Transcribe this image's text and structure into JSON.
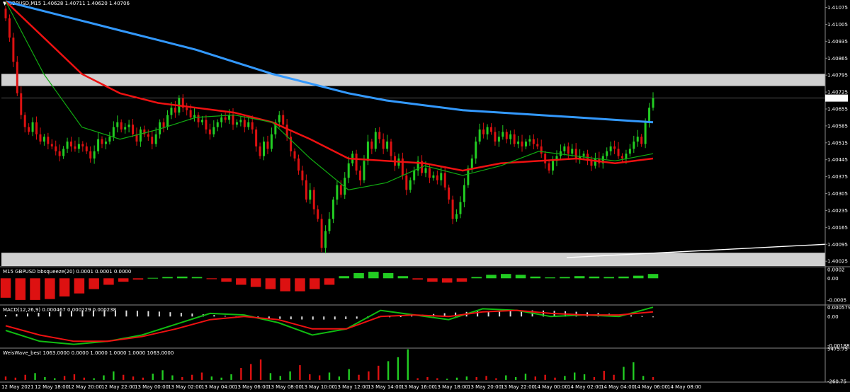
{
  "header": {
    "symbol_line": "GBPUSD,M15",
    "ohlc": "1.40628 1.40711 1.40620 1.40706"
  },
  "panels": {
    "bbsqueeze_title": "M15 GBPUSD bbsqueeze(20) 0.0001 0.0001 0.0000",
    "macd_title": "MACD(12,26,9) 0.000467 0.000229 0.000238",
    "weis_title": "WeisWave_best 1063.0000 0.0000 1.0000 1.0000 1.0000 1063.0000"
  },
  "colors": {
    "background": "#000000",
    "bull": "#22cc22",
    "bear": "#dd1111",
    "ma_blue": "#3399ff",
    "ma_red": "#ee1111",
    "ma_green": "#11aa11",
    "ma_yellow": "#d8d860",
    "zone": "#d0d0d0",
    "grid_line": "#ffffff"
  },
  "chart_data": [
    {
      "type": "candlestick",
      "panel": "price",
      "symbol": "GBPUSD",
      "timeframe": "M15",
      "ylim": [
        1.40005,
        1.411
      ],
      "y_ticks": [
        "1.41075",
        "1.41005",
        "1.40935",
        "1.40865",
        "1.40795",
        "1.40725",
        "1.40655",
        "1.40585",
        "1.40515",
        "1.40445",
        "1.40375",
        "1.40305",
        "1.40235",
        "1.40165",
        "1.40095",
        "1.40025"
      ],
      "current_price_label": "1.40706",
      "x_labels": [
        "12 May 2021",
        "12 May 18:00",
        "12 May 20:00",
        "12 May 22:00",
        "13 May 00:00",
        "13 May 02:00",
        "13 May 04:00",
        "13 May 06:00",
        "13 May 08:00",
        "13 May 10:00",
        "13 May 12:00",
        "13 May 14:00",
        "13 May 16:00",
        "13 May 18:00",
        "13 May 20:00",
        "13 May 22:00",
        "14 May 00:00",
        "14 May 02:00",
        "14 May 04:00",
        "14 May 06:00",
        "14 May 08:00"
      ],
      "zones": [
        [
          1.4075,
          1.408
        ],
        [
          1.40005,
          1.4006
        ]
      ],
      "closes": [
        1.4103,
        1.4095,
        1.4085,
        1.4072,
        1.4063,
        1.4058,
        1.4056,
        1.406,
        1.4055,
        1.4052,
        1.4054,
        1.4051,
        1.405,
        1.4048,
        1.4046,
        1.4049,
        1.4052,
        1.405,
        1.4049,
        1.4051,
        1.405,
        1.4048,
        1.4045,
        1.4048,
        1.4053,
        1.4051,
        1.4052,
        1.4054,
        1.4058,
        1.406,
        1.4057,
        1.4058,
        1.4059,
        1.4055,
        1.4052,
        1.4057,
        1.4055,
        1.4054,
        1.4051,
        1.4055,
        1.406,
        1.4058,
        1.4063,
        1.4066,
        1.4064,
        1.407,
        1.4066,
        1.4065,
        1.4062,
        1.4063,
        1.406,
        1.4061,
        1.4057,
        1.4055,
        1.4058,
        1.406,
        1.4062,
        1.4061,
        1.4063,
        1.4059,
        1.406,
        1.4061,
        1.4058,
        1.406,
        1.4057,
        1.405,
        1.4046,
        1.4052,
        1.4049,
        1.4055,
        1.406,
        1.4063,
        1.4059,
        1.4054,
        1.4048,
        1.4045,
        1.404,
        1.4036,
        1.4028,
        1.4032,
        1.4024,
        1.402,
        1.4008,
        1.4015,
        1.402,
        1.4028,
        1.4034,
        1.403,
        1.4037,
        1.4043,
        1.4047,
        1.404,
        1.4036,
        1.4044,
        1.4052,
        1.4049,
        1.4056,
        1.4053,
        1.4049,
        1.4052,
        1.4046,
        1.4042,
        1.4045,
        1.4038,
        1.4032,
        1.4036,
        1.404,
        1.4044,
        1.4039,
        1.4041,
        1.4037,
        1.4038,
        1.4036,
        1.4039,
        1.4033,
        1.4028,
        1.402,
        1.4022,
        1.4027,
        1.4034,
        1.4041,
        1.4045,
        1.4052,
        1.4057,
        1.4055,
        1.4058,
        1.4056,
        1.4052,
        1.4054,
        1.4056,
        1.4053,
        1.4055,
        1.4051,
        1.4052,
        1.405,
        1.4052,
        1.4053,
        1.4051,
        1.405,
        1.4047,
        1.4043,
        1.404,
        1.4044,
        1.4046,
        1.4048,
        1.405,
        1.4047,
        1.4049,
        1.4045,
        1.4046,
        1.4047,
        1.4044,
        1.4042,
        1.4045,
        1.4043,
        1.4046,
        1.4048,
        1.405,
        1.4049,
        1.4046,
        1.4045,
        1.4047,
        1.4049,
        1.4052,
        1.4054,
        1.4051,
        1.406,
        1.4066,
        1.407
      ]
    },
    {
      "type": "line",
      "panel": "price",
      "series": [
        {
          "color": "#3399ff",
          "values": [
            1.411,
            1.4106,
            1.4102,
            1.4098,
            1.4094,
            1.409,
            1.4085,
            1.408,
            1.4076,
            1.4072,
            1.4069,
            1.4067,
            1.4065,
            1.4064,
            1.4063,
            1.4062,
            1.4061,
            1.406
          ]
        },
        {
          "color": "#ee1111",
          "values": [
            1.411,
            1.4095,
            1.408,
            1.4072,
            1.4068,
            1.4066,
            1.4064,
            1.406,
            1.4053,
            1.4045,
            1.4044,
            1.4043,
            1.404,
            1.4043,
            1.4044,
            1.4045,
            1.4043,
            1.4045
          ]
        },
        {
          "color": "#11aa11",
          "values": [
            1.411,
            1.408,
            1.4058,
            1.4053,
            1.4057,
            1.4062,
            1.4063,
            1.406,
            1.4045,
            1.4032,
            1.4035,
            1.4042,
            1.4038,
            1.4042,
            1.4048,
            1.4046,
            1.4044,
            1.4047
          ]
        }
      ]
    },
    {
      "type": "bar",
      "panel": "bbsqueeze",
      "y_ticks": [
        "0.0002",
        "0.00",
        "-0.0005"
      ],
      "ylim": [
        -0.0006,
        0.00025
      ],
      "values": [
        -0.00045,
        -0.0005,
        -0.0005,
        -0.00048,
        -0.00042,
        -0.00035,
        -0.00025,
        -0.00015,
        -8e-05,
        -3e-05,
        1e-05,
        3e-05,
        4e-05,
        3e-05,
        -2e-05,
        -8e-05,
        -0.00015,
        -0.0002,
        -0.00025,
        -0.0003,
        -0.0003,
        -0.00025,
        -0.00015,
        5e-05,
        0.00012,
        0.00015,
        0.00012,
        5e-05,
        -3e-05,
        -8e-05,
        -0.0001,
        -8e-05,
        3e-05,
        8e-05,
        0.0001,
        8e-05,
        4e-05,
        2e-05,
        3e-05,
        5e-05,
        4e-05,
        3e-05,
        4e-05,
        6e-05,
        0.0001
      ]
    },
    {
      "type": "line",
      "panel": "macd",
      "y_ticks": [
        "0.000579",
        "0.00",
        "-0.001888"
      ],
      "ylim": [
        -0.002,
        0.0007
      ],
      "series": [
        {
          "color": "#11bb11",
          "values": [
            -0.0009,
            -0.0016,
            -0.0018,
            -0.0016,
            -0.0012,
            -0.0005,
            0.0002,
            0.0001,
            -0.0004,
            -0.0012,
            -0.0008,
            0.0004,
            0.0001,
            -0.0002,
            0.0005,
            0.0004,
            0.0,
            0.0001,
            0.0,
            0.0006
          ]
        },
        {
          "color": "#ee1111",
          "values": [
            -0.0006,
            -0.0012,
            -0.0016,
            -0.0016,
            -0.0013,
            -0.0008,
            -0.0002,
            0.0,
            -0.0002,
            -0.0008,
            -0.0008,
            0.0,
            0.0001,
            0.0,
            0.0003,
            0.0004,
            0.0002,
            0.0001,
            0.0001,
            0.0003
          ]
        }
      ]
    },
    {
      "type": "bar",
      "panel": "weiswave",
      "y_ticks": [
        "5475.75",
        "-260.75"
      ],
      "ylim": [
        -260.75,
        5475.75
      ],
      "values": [
        600,
        400,
        900,
        1200,
        500,
        300,
        700,
        1000,
        400,
        300,
        800,
        1500,
        900,
        600,
        400,
        1100,
        1700,
        800,
        500,
        900,
        1300,
        600,
        400,
        1000,
        2100,
        2800,
        3600,
        1200,
        700,
        1500,
        2600,
        1000,
        800,
        1300,
        600,
        1900,
        900,
        1500,
        2500,
        3300,
        4000,
        5400,
        300,
        500,
        300,
        200,
        400,
        600,
        500,
        700,
        300,
        800,
        500,
        1100,
        600,
        900,
        400,
        700,
        1300,
        1000,
        500,
        1600,
        900,
        2300,
        3100,
        700,
        500
      ]
    }
  ]
}
